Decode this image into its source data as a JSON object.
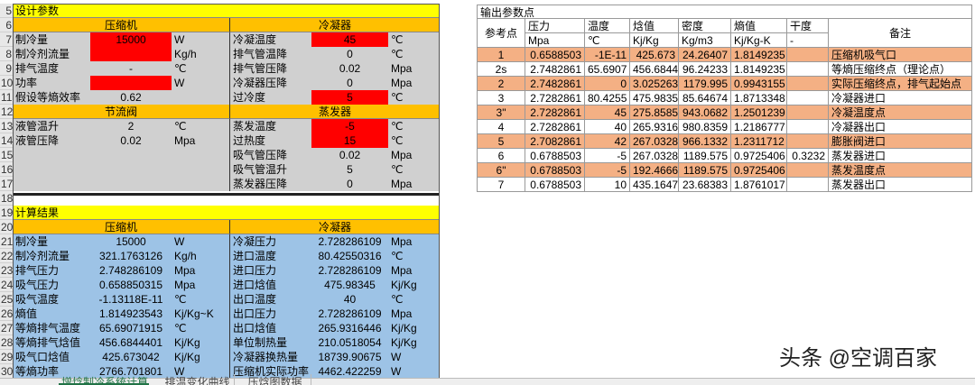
{
  "row_numbers": [
    "5",
    "6",
    "7",
    "8",
    "9",
    "10",
    "11",
    "12",
    "13",
    "14",
    "15",
    "16",
    "17",
    "18",
    "19",
    "20",
    "21",
    "22",
    "23",
    "24",
    "25",
    "26",
    "27",
    "28",
    "29",
    "30"
  ],
  "design": {
    "title": "设计参数",
    "blocks": [
      {
        "heads": [
          "压缩机",
          "冷凝器"
        ],
        "rows": [
          [
            "制冷量",
            "15000",
            "W",
            "冷凝温度",
            "45",
            "℃"
          ],
          [
            "制冷剂流量",
            null,
            "Kg/h",
            "排气管温降",
            "0",
            "℃"
          ],
          [
            "排气温度",
            "-",
            "℃",
            "排气管压降",
            "0.02",
            "Mpa"
          ],
          [
            "功率",
            null,
            "W",
            "冷凝器压降",
            "0",
            "Mpa"
          ],
          [
            "假设等熵效率",
            "0.62",
            null,
            "过冷度",
            "5",
            "℃"
          ]
        ]
      },
      {
        "heads": [
          "节流阀",
          "蒸发器"
        ],
        "rows": [
          [
            "液管温升",
            "2",
            "℃",
            "蒸发温度",
            "-5",
            "℃"
          ],
          [
            "液管压降",
            "0.02",
            "Mpa",
            "过热度",
            "15",
            "℃"
          ],
          [
            null,
            null,
            null,
            "吸气管压降",
            "0.02",
            "Mpa"
          ],
          [
            null,
            null,
            null,
            "吸气管温升",
            "5",
            "℃"
          ],
          [
            null,
            null,
            null,
            "蒸发器压降",
            "0",
            "Mpa"
          ]
        ]
      }
    ]
  },
  "results": {
    "title": "计算结果",
    "blocks": [
      {
        "heads": [
          "压缩机",
          "冷凝器"
        ],
        "rows": [
          [
            "制冷量",
            "15000",
            "W",
            "冷凝压力",
            "2.728286109",
            "Mpa"
          ],
          [
            "制冷剂流量",
            "321.1763126",
            "Kg/h",
            "进口温度",
            "80.42550316",
            "℃"
          ],
          [
            "排气压力",
            "2.748286109",
            "Mpa",
            "进口压力",
            "2.728286109",
            "Mpa"
          ],
          [
            "吸气压力",
            "0.658850315",
            "Mpa",
            "进口焓值",
            "475.98345",
            "Kj/Kg"
          ],
          [
            "吸气温度",
            "-1.13118E-11",
            "℃",
            "出口温度",
            "40",
            "℃"
          ],
          [
            "熵值",
            "1.814923543",
            "Kj/Kg~K",
            "出口压力",
            "2.728286109",
            "Mpa"
          ],
          [
            "等熵排气温度",
            "65.69071915",
            "℃",
            "出口焓值",
            "265.9316446",
            "Kj/Kg"
          ],
          [
            "等熵排气焓值",
            "456.6844401",
            "Kj/Kg",
            "单位制热量",
            "210.0518054",
            "Kj/Kg"
          ],
          [
            "吸气口焓值",
            "425.673042",
            "Kj/Kg",
            "冷凝器换热量",
            "18739.90675",
            "W"
          ],
          [
            "等熵功率",
            "2766.701801",
            "W",
            "压缩机实际功率",
            "4462.422259",
            "W"
          ]
        ]
      }
    ]
  },
  "output": {
    "title": "输出参数点",
    "columns": [
      "参考点",
      "压力",
      "温度",
      "焓值",
      "密度",
      "熵值",
      "干度",
      "备注"
    ],
    "units": [
      "Mpa",
      "℃",
      "Kj/Kg",
      "Kg/m3",
      "Kj/Kg-K",
      "-"
    ],
    "rows": [
      [
        "1",
        "0.6588503",
        "-1E-11",
        "425.673",
        "24.26407",
        "1.8149235",
        null,
        "压缩机吸气口"
      ],
      [
        "2s",
        "2.7482861",
        "65.6907",
        "456.6844",
        "96.24233",
        "1.8149235",
        null,
        "等熵压缩终点（理论点）"
      ],
      [
        "2",
        "2.7482861",
        "0",
        "3.025263",
        "1179.995",
        "0.9943155",
        null,
        "实际压缩终点，排气起始点"
      ],
      [
        "3",
        "2.7282861",
        "80.4255",
        "475.9835",
        "85.64674",
        "1.8713348",
        null,
        "冷凝器进口"
      ],
      [
        "3\"",
        "2.7282861",
        "45",
        "275.8585",
        "943.0682",
        "1.2501239",
        null,
        "冷凝温度点"
      ],
      [
        "4",
        "2.7282861",
        "40",
        "265.9316",
        "980.8359",
        "1.2186777",
        null,
        "冷凝器出口"
      ],
      [
        "5",
        "2.7082861",
        "42",
        "267.0328",
        "966.1332",
        "1.2311712",
        null,
        "膨胀阀进口"
      ],
      [
        "6",
        "0.6788503",
        "-5",
        "267.0328",
        "1189.575",
        "0.9725406",
        "0.3232",
        "蒸发器进口"
      ],
      [
        "6\"",
        "0.6788503",
        "-5",
        "192.4666",
        "1189.575",
        "0.9725406",
        null,
        "蒸发温度点"
      ],
      [
        "7",
        "0.6788503",
        "10",
        "435.1647",
        "23.68383",
        "1.8761017",
        null,
        "蒸发器出口"
      ]
    ]
  },
  "watermark": "头条 @空调百家",
  "tabs": [
    "增焓制冷系统计算",
    "排温变化曲线",
    "压焓图数据"
  ]
}
